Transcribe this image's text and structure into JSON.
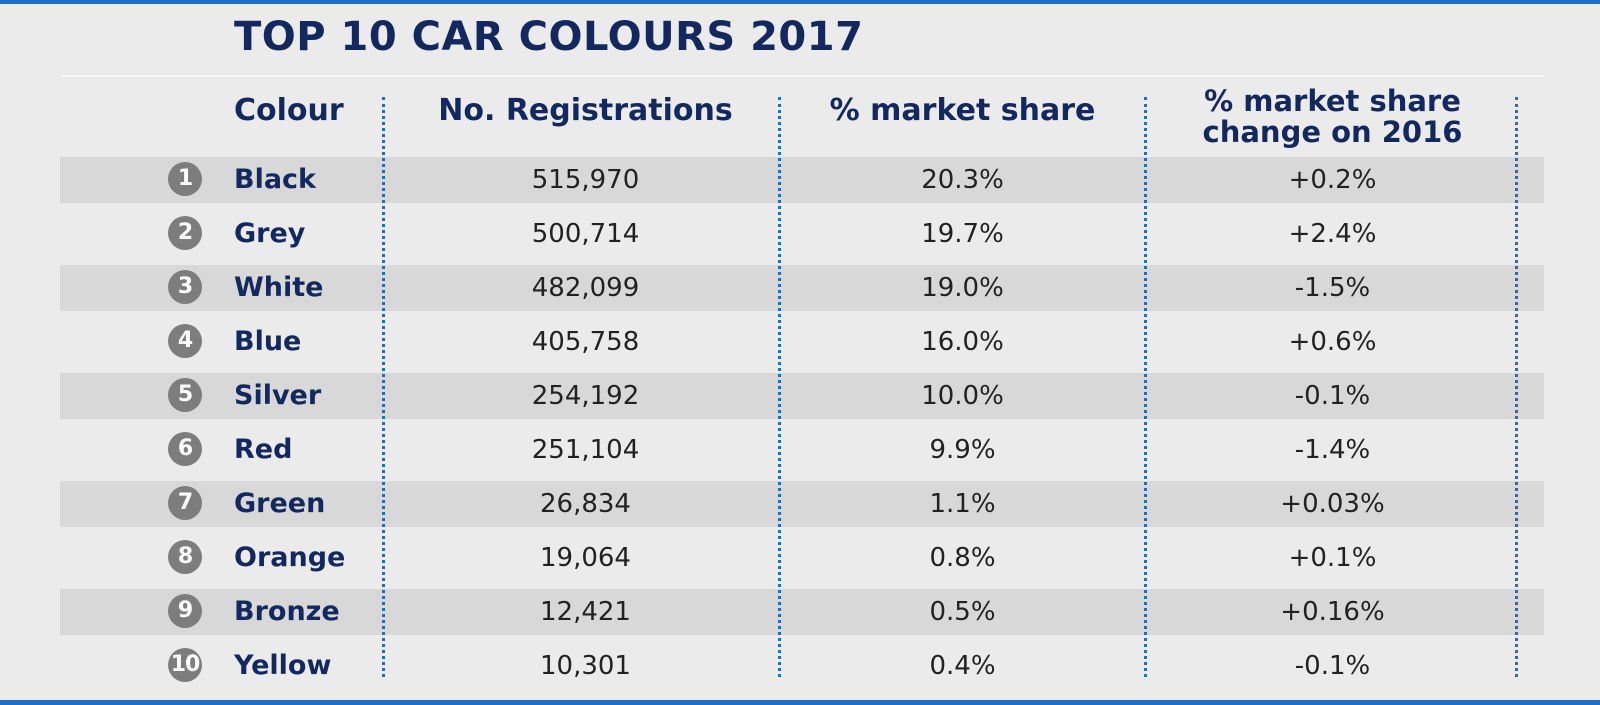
{
  "title": "TOP 10 CAR COLOURS 2017",
  "colors": {
    "title_text": "#13285e",
    "accent_blue": "#1c6fc4",
    "stripe": "#d8d8d8",
    "background": "#ebebeb",
    "rank_badge": "#7d7d7d"
  },
  "chart_data": {
    "type": "table",
    "title": "TOP 10 CAR COLOURS 2017",
    "columns": [
      "Colour",
      "No. Registrations",
      "% market share",
      "% market share change on 2016"
    ],
    "rows": [
      {
        "rank": "1",
        "colour": "Black",
        "registrations": "515,970",
        "share": "20.3%",
        "change": "+0.2%"
      },
      {
        "rank": "2",
        "colour": "Grey",
        "registrations": "500,714",
        "share": "19.7%",
        "change": "+2.4%"
      },
      {
        "rank": "3",
        "colour": "White",
        "registrations": "482,099",
        "share": "19.0%",
        "change": "-1.5%"
      },
      {
        "rank": "4",
        "colour": "Blue",
        "registrations": "405,758",
        "share": "16.0%",
        "change": "+0.6%"
      },
      {
        "rank": "5",
        "colour": "Silver",
        "registrations": "254,192",
        "share": "10.0%",
        "change": "-0.1%"
      },
      {
        "rank": "6",
        "colour": "Red",
        "registrations": "251,104",
        "share": "9.9%",
        "change": "-1.4%"
      },
      {
        "rank": "7",
        "colour": "Green",
        "registrations": "26,834",
        "share": "1.1%",
        "change": "+0.03%"
      },
      {
        "rank": "8",
        "colour": "Orange",
        "registrations": "19,064",
        "share": "0.8%",
        "change": "+0.1%"
      },
      {
        "rank": "9",
        "colour": "Bronze",
        "registrations": "12,421",
        "share": "0.5%",
        "change": "+0.16%"
      },
      {
        "rank": "10",
        "colour": "Yellow",
        "registrations": "10,301",
        "share": "0.4%",
        "change": "-0.1%"
      }
    ]
  }
}
